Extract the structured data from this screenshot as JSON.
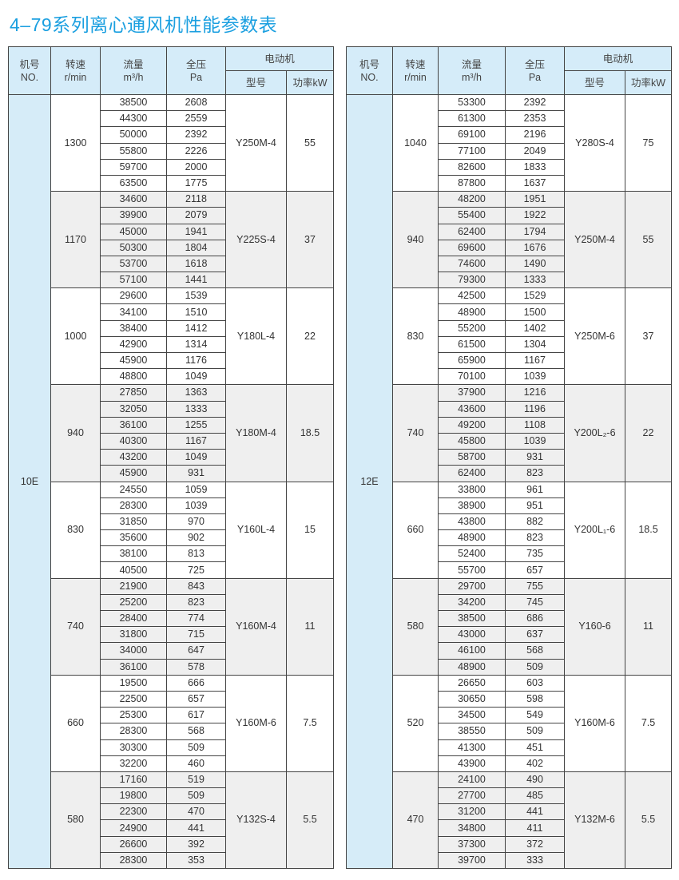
{
  "title": "4–79系列离心通风机性能参数表",
  "headers": {
    "no": "机号",
    "no_sub": "NO.",
    "speed": "转速",
    "speed_sub": "r/min",
    "flow": "流量",
    "flow_sub": "m³/h",
    "pressure": "全压",
    "pressure_sub": "Pa",
    "motor": "电动机",
    "model": "型号",
    "power": "功率kW"
  },
  "colors": {
    "title": "#1a9fe0",
    "header_bg": "#d5ecf9",
    "stripe": "#efefef"
  },
  "tables": [
    {
      "no": "10E",
      "groups": [
        {
          "speed": "1300",
          "model": "Y250M-4",
          "power": "55",
          "rows": [
            [
              "38500",
              "2608"
            ],
            [
              "44300",
              "2559"
            ],
            [
              "50000",
              "2392"
            ],
            [
              "55800",
              "2226"
            ],
            [
              "59700",
              "2000"
            ],
            [
              "63500",
              "1775"
            ]
          ]
        },
        {
          "speed": "1170",
          "model": "Y225S-4",
          "power": "37",
          "rows": [
            [
              "34600",
              "2118"
            ],
            [
              "39900",
              "2079"
            ],
            [
              "45000",
              "1941"
            ],
            [
              "50300",
              "1804"
            ],
            [
              "53700",
              "1618"
            ],
            [
              "57100",
              "1441"
            ]
          ]
        },
        {
          "speed": "1000",
          "model": "Y180L-4",
          "power": "22",
          "rows": [
            [
              "29600",
              "1539"
            ],
            [
              "34100",
              "1510"
            ],
            [
              "38400",
              "1412"
            ],
            [
              "42900",
              "1314"
            ],
            [
              "45900",
              "1176"
            ],
            [
              "48800",
              "1049"
            ]
          ]
        },
        {
          "speed": "940",
          "model": "Y180M-4",
          "power": "18.5",
          "rows": [
            [
              "27850",
              "1363"
            ],
            [
              "32050",
              "1333"
            ],
            [
              "36100",
              "1255"
            ],
            [
              "40300",
              "1167"
            ],
            [
              "43200",
              "1049"
            ],
            [
              "45900",
              "931"
            ]
          ]
        },
        {
          "speed": "830",
          "model": "Y160L-4",
          "power": "15",
          "rows": [
            [
              "24550",
              "1059"
            ],
            [
              "28300",
              "1039"
            ],
            [
              "31850",
              "970"
            ],
            [
              "35600",
              "902"
            ],
            [
              "38100",
              "813"
            ],
            [
              "40500",
              "725"
            ]
          ]
        },
        {
          "speed": "740",
          "model": "Y160M-4",
          "power": "11",
          "rows": [
            [
              "21900",
              "843"
            ],
            [
              "25200",
              "823"
            ],
            [
              "28400",
              "774"
            ],
            [
              "31800",
              "715"
            ],
            [
              "34000",
              "647"
            ],
            [
              "36100",
              "578"
            ]
          ]
        },
        {
          "speed": "660",
          "model": "Y160M-6",
          "power": "7.5",
          "rows": [
            [
              "19500",
              "666"
            ],
            [
              "22500",
              "657"
            ],
            [
              "25300",
              "617"
            ],
            [
              "28300",
              "568"
            ],
            [
              "30300",
              "509"
            ],
            [
              "32200",
              "460"
            ]
          ]
        },
        {
          "speed": "580",
          "model": "Y132S-4",
          "power": "5.5",
          "rows": [
            [
              "17160",
              "519"
            ],
            [
              "19800",
              "509"
            ],
            [
              "22300",
              "470"
            ],
            [
              "24900",
              "441"
            ],
            [
              "26600",
              "392"
            ],
            [
              "28300",
              "353"
            ]
          ]
        }
      ]
    },
    {
      "no": "12E",
      "groups": [
        {
          "speed": "1040",
          "model": "Y280S-4",
          "power": "75",
          "rows": [
            [
              "53300",
              "2392"
            ],
            [
              "61300",
              "2353"
            ],
            [
              "69100",
              "2196"
            ],
            [
              "77100",
              "2049"
            ],
            [
              "82600",
              "1833"
            ],
            [
              "87800",
              "1637"
            ]
          ]
        },
        {
          "speed": "940",
          "model": "Y250M-4",
          "power": "55",
          "rows": [
            [
              "48200",
              "1951"
            ],
            [
              "55400",
              "1922"
            ],
            [
              "62400",
              "1794"
            ],
            [
              "69600",
              "1676"
            ],
            [
              "74600",
              "1490"
            ],
            [
              "79300",
              "1333"
            ]
          ]
        },
        {
          "speed": "830",
          "model": "Y250M-6",
          "power": "37",
          "rows": [
            [
              "42500",
              "1529"
            ],
            [
              "48900",
              "1500"
            ],
            [
              "55200",
              "1402"
            ],
            [
              "61500",
              "1304"
            ],
            [
              "65900",
              "1167"
            ],
            [
              "70100",
              "1039"
            ]
          ]
        },
        {
          "speed": "740",
          "model": "Y200L₂-6",
          "power": "22",
          "rows": [
            [
              "37900",
              "1216"
            ],
            [
              "43600",
              "1196"
            ],
            [
              "49200",
              "1108"
            ],
            [
              "45800",
              "1039"
            ],
            [
              "58700",
              "931"
            ],
            [
              "62400",
              "823"
            ]
          ]
        },
        {
          "speed": "660",
          "model": "Y200L₁-6",
          "power": "18.5",
          "rows": [
            [
              "33800",
              "961"
            ],
            [
              "38900",
              "951"
            ],
            [
              "43800",
              "882"
            ],
            [
              "48900",
              "823"
            ],
            [
              "52400",
              "735"
            ],
            [
              "55700",
              "657"
            ]
          ]
        },
        {
          "speed": "580",
          "model": "Y160-6",
          "power": "11",
          "rows": [
            [
              "29700",
              "755"
            ],
            [
              "34200",
              "745"
            ],
            [
              "38500",
              "686"
            ],
            [
              "43000",
              "637"
            ],
            [
              "46100",
              "568"
            ],
            [
              "48900",
              "509"
            ]
          ]
        },
        {
          "speed": "520",
          "model": "Y160M-6",
          "power": "7.5",
          "rows": [
            [
              "26650",
              "603"
            ],
            [
              "30650",
              "598"
            ],
            [
              "34500",
              "549"
            ],
            [
              "38550",
              "509"
            ],
            [
              "41300",
              "451"
            ],
            [
              "43900",
              "402"
            ]
          ]
        },
        {
          "speed": "470",
          "model": "Y132M-6",
          "power": "5.5",
          "rows": [
            [
              "24100",
              "490"
            ],
            [
              "27700",
              "485"
            ],
            [
              "31200",
              "441"
            ],
            [
              "34800",
              "411"
            ],
            [
              "37300",
              "372"
            ],
            [
              "39700",
              "333"
            ]
          ]
        }
      ]
    }
  ]
}
